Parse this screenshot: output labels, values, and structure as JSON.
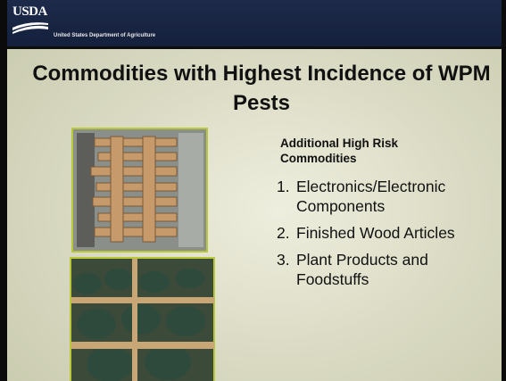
{
  "header": {
    "logo": "USDA",
    "agency": "United States Department of Agriculture"
  },
  "title": "Commodities with Highest Incidence of WPM Pests",
  "subheading": "Additional High Risk Commodities",
  "items": [
    {
      "number": "1.",
      "text": "Electronics/Electronic Components"
    },
    {
      "number": "2.",
      "text": "Finished Wood Articles"
    },
    {
      "number": "3.",
      "text": "Plant Products and Foodstuffs"
    }
  ]
}
